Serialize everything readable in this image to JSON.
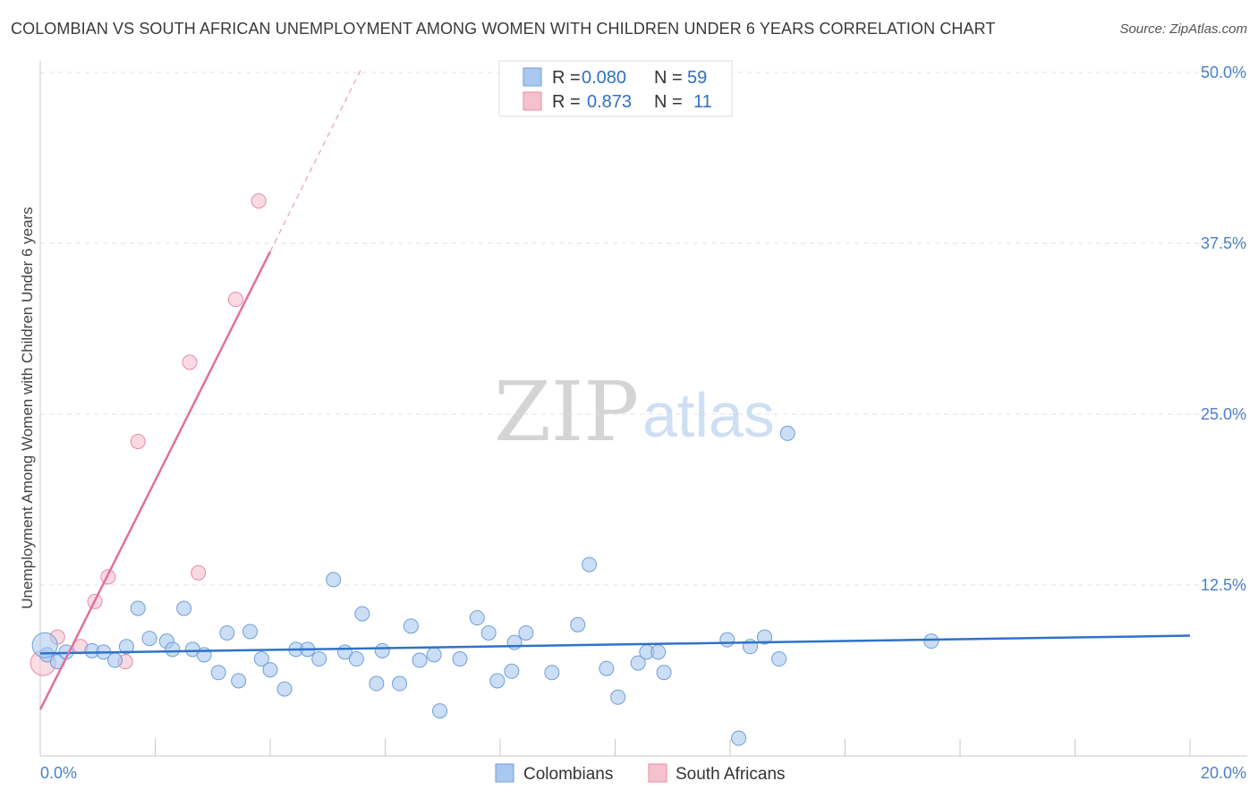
{
  "title": "COLOMBIAN VS SOUTH AFRICAN UNEMPLOYMENT AMONG WOMEN WITH CHILDREN UNDER 6 YEARS CORRELATION CHART",
  "source": "Source: ZipAtlas.com",
  "watermark": {
    "zip": "ZIP",
    "atlas": "atlas"
  },
  "legend_top": [
    {
      "r_label": "R =",
      "r_value": "0.080",
      "n_label": "N =",
      "n_value": "59",
      "color": "#a9c8ef",
      "stroke": "#6f9fd8",
      "text_color": "#2f6fc7"
    },
    {
      "r_label": "R =",
      "r_value": "0.873",
      "n_label": "N =",
      "n_value": "11",
      "color": "#f6c1cf",
      "stroke": "#e88aa3",
      "text_color": "#2f6fc7"
    }
  ],
  "legend_bottom": [
    {
      "label": "Colombians",
      "color": "#a9c8ef",
      "stroke": "#6f9fd8"
    },
    {
      "label": "South Africans",
      "color": "#f6c1cf",
      "stroke": "#e88aa3"
    }
  ],
  "chart_data": {
    "type": "scatter",
    "title": "COLOMBIAN VS SOUTH AFRICAN UNEMPLOYMENT AMONG WOMEN WITH CHILDREN UNDER 6 YEARS CORRELATION CHART",
    "xlabel": "",
    "ylabel": "Unemployment Among Women with Children Under 6 years",
    "xlim": [
      0,
      20
    ],
    "ylim": [
      0,
      50
    ],
    "x_tick_labels": [
      "0.0%",
      "20.0%"
    ],
    "y_ticks": [
      12.5,
      25.0,
      37.5,
      50.0
    ],
    "y_tick_labels": [
      "12.5%",
      "25.0%",
      "37.5%",
      "50.0%"
    ],
    "grid": true,
    "series": [
      {
        "name": "Colombians",
        "color": "#a9c8ef",
        "stroke": "#6f9fd8",
        "points": [
          [
            0.12,
            7.4
          ],
          [
            0.3,
            6.9
          ],
          [
            0.45,
            7.6
          ],
          [
            0.9,
            7.7
          ],
          [
            1.1,
            7.6
          ],
          [
            1.3,
            7.0
          ],
          [
            1.5,
            8.0
          ],
          [
            1.7,
            10.8
          ],
          [
            1.9,
            8.6
          ],
          [
            2.2,
            8.4
          ],
          [
            2.3,
            7.8
          ],
          [
            2.5,
            10.8
          ],
          [
            2.65,
            7.8
          ],
          [
            2.85,
            7.4
          ],
          [
            3.1,
            6.1
          ],
          [
            3.25,
            9.0
          ],
          [
            3.45,
            5.5
          ],
          [
            3.65,
            9.1
          ],
          [
            3.85,
            7.1
          ],
          [
            4.0,
            6.3
          ],
          [
            4.25,
            4.9
          ],
          [
            4.45,
            7.8
          ],
          [
            4.65,
            7.8
          ],
          [
            4.85,
            7.1
          ],
          [
            5.1,
            12.9
          ],
          [
            5.3,
            7.6
          ],
          [
            5.5,
            7.1
          ],
          [
            5.6,
            10.4
          ],
          [
            5.85,
            5.3
          ],
          [
            5.95,
            7.7
          ],
          [
            6.25,
            5.3
          ],
          [
            6.45,
            9.5
          ],
          [
            6.6,
            7.0
          ],
          [
            6.85,
            7.4
          ],
          [
            6.95,
            3.3
          ],
          [
            7.3,
            7.1
          ],
          [
            7.6,
            10.1
          ],
          [
            7.8,
            9.0
          ],
          [
            7.95,
            5.5
          ],
          [
            8.2,
            6.2
          ],
          [
            8.25,
            8.3
          ],
          [
            8.45,
            9.0
          ],
          [
            8.9,
            6.1
          ],
          [
            9.35,
            9.6
          ],
          [
            9.55,
            14.0
          ],
          [
            9.85,
            6.4
          ],
          [
            10.05,
            4.3
          ],
          [
            10.4,
            6.8
          ],
          [
            10.55,
            7.6
          ],
          [
            10.75,
            7.6
          ],
          [
            10.85,
            6.1
          ],
          [
            11.95,
            8.5
          ],
          [
            12.15,
            1.3
          ],
          [
            12.35,
            8.0
          ],
          [
            12.6,
            8.7
          ],
          [
            12.85,
            7.1
          ],
          [
            13.0,
            23.6
          ],
          [
            15.5,
            8.4
          ],
          [
            0.08,
            8.1
          ]
        ],
        "trend": {
          "x": [
            0,
            20
          ],
          "y": [
            7.5,
            8.8
          ]
        }
      },
      {
        "name": "South Africans",
        "color": "#f6c1cf",
        "stroke": "#e88aa3",
        "points": [
          [
            0.05,
            6.8
          ],
          [
            0.3,
            8.7
          ],
          [
            0.7,
            8.0
          ],
          [
            0.95,
            11.3
          ],
          [
            1.18,
            13.1
          ],
          [
            1.48,
            6.9
          ],
          [
            1.7,
            23.0
          ],
          [
            2.75,
            13.4
          ],
          [
            2.6,
            28.8
          ],
          [
            3.4,
            33.4
          ],
          [
            3.8,
            40.6
          ]
        ],
        "trend": {
          "x": [
            0,
            4.0
          ],
          "y": [
            3.4,
            36.9
          ]
        },
        "trend_extension": {
          "x": [
            4.0,
            5.6
          ],
          "y": [
            36.9,
            50.4
          ]
        }
      }
    ]
  }
}
